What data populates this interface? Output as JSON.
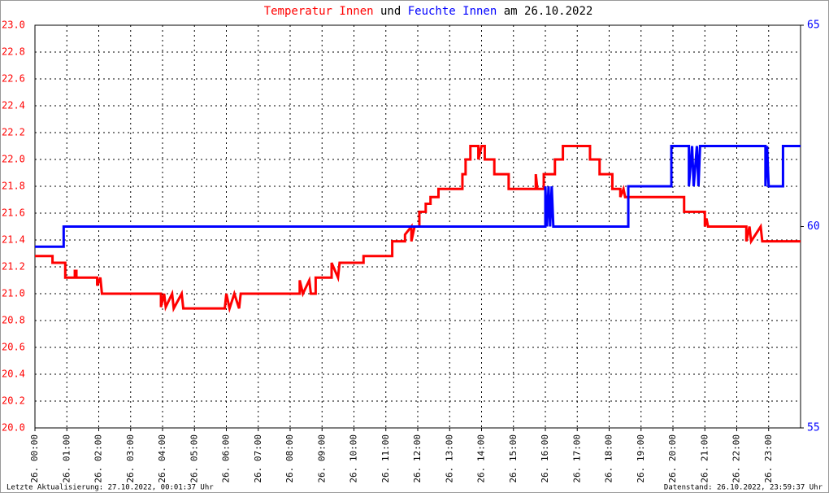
{
  "chart_data": {
    "type": "line",
    "title_joiner": "und",
    "title_suffix": "am 26.10.2022",
    "footer_left": "Letzte Aktualisierung: 27.10.2022, 00:01:37 Uhr",
    "footer_right": "Datenstand: 26.10.2022, 23:59:37 Uhr",
    "xlim": [
      0,
      24
    ],
    "xticks": [
      {
        "value": 0,
        "label": "26. 00:00"
      },
      {
        "value": 1,
        "label": "26. 01:00"
      },
      {
        "value": 2,
        "label": "26. 02:00"
      },
      {
        "value": 3,
        "label": "26. 03:00"
      },
      {
        "value": 4,
        "label": "26. 04:00"
      },
      {
        "value": 5,
        "label": "26. 05:00"
      },
      {
        "value": 6,
        "label": "26. 06:00"
      },
      {
        "value": 7,
        "label": "26. 07:00"
      },
      {
        "value": 8,
        "label": "26. 08:00"
      },
      {
        "value": 9,
        "label": "26. 09:00"
      },
      {
        "value": 10,
        "label": "26. 10:00"
      },
      {
        "value": 11,
        "label": "26. 11:00"
      },
      {
        "value": 12,
        "label": "26. 12:00"
      },
      {
        "value": 13,
        "label": "26. 13:00"
      },
      {
        "value": 14,
        "label": "26. 14:00"
      },
      {
        "value": 15,
        "label": "26. 15:00"
      },
      {
        "value": 16,
        "label": "26. 16:00"
      },
      {
        "value": 17,
        "label": "26. 17:00"
      },
      {
        "value": 18,
        "label": "26. 18:00"
      },
      {
        "value": 19,
        "label": "26. 19:00"
      },
      {
        "value": 20,
        "label": "26. 20:00"
      },
      {
        "value": 21,
        "label": "26. 21:00"
      },
      {
        "value": 22,
        "label": "26. 22:00"
      },
      {
        "value": 23,
        "label": "26. 23:00"
      }
    ],
    "ylim": [
      20,
      23
    ],
    "yticks": [
      {
        "value": 20,
        "label": "20.0"
      },
      20.2,
      20.4,
      20.6,
      20.8,
      {
        "value": 21,
        "label": "21.0"
      },
      21.2,
      21.4,
      21.6,
      21.8,
      {
        "value": 22,
        "label": "22.0"
      },
      22.2,
      22.4,
      22.6,
      22.8,
      {
        "value": 23,
        "label": "23.0"
      }
    ],
    "y2lim": [
      55,
      65
    ],
    "y2ticks": [
      55,
      60,
      65
    ],
    "grid": true,
    "series": [
      {
        "name": "Temperatur Innen",
        "color": "#ff0000",
        "axis": "y",
        "x": [
          0,
          0.55,
          0.55,
          0.95,
          0.95,
          1.25,
          1.25,
          1.3,
          1.3,
          1.95,
          1.95,
          2.05,
          2.1,
          3.95,
          3.95,
          4.05,
          4.1,
          4.3,
          4.35,
          4.6,
          4.65,
          5.95,
          6.0,
          6.1,
          6.25,
          6.4,
          6.45,
          8.3,
          8.3,
          8.4,
          8.6,
          8.65,
          8.8,
          8.8,
          9.3,
          9.3,
          9.5,
          9.55,
          10.3,
          10.3,
          11.2,
          11.2,
          11.6,
          11.6,
          11.8,
          11.8,
          11.9,
          12.05,
          12.05,
          12.25,
          12.25,
          12.4,
          12.4,
          12.65,
          12.65,
          13.4,
          13.4,
          13.5,
          13.5,
          13.65,
          13.65,
          13.9,
          13.9,
          14.0,
          14.1,
          14.1,
          14.4,
          14.4,
          14.85,
          14.85,
          15.7,
          15.7,
          15.75,
          15.95,
          15.95,
          16.3,
          16.3,
          16.55,
          16.55,
          17.4,
          17.4,
          17.7,
          17.7,
          18.1,
          18.1,
          18.35,
          18.35,
          18.45,
          18.5,
          20.35,
          20.35,
          21.0,
          21.0,
          21.05,
          21.1,
          22.3,
          22.3,
          22.4,
          22.45,
          22.75,
          22.8,
          24
        ],
        "values": [
          21.28,
          21.28,
          21.23,
          21.23,
          21.12,
          21.12,
          21.17,
          21.17,
          21.12,
          21.12,
          21.06,
          21.12,
          21.0,
          21.0,
          20.9,
          21.0,
          20.9,
          21.0,
          20.89,
          21.0,
          20.89,
          20.89,
          21.0,
          20.89,
          21.0,
          20.89,
          21.0,
          21.0,
          21.1,
          21.0,
          21.1,
          21.0,
          21.0,
          21.12,
          21.12,
          21.23,
          21.12,
          21.23,
          21.23,
          21.28,
          21.28,
          21.39,
          21.39,
          21.44,
          21.5,
          21.39,
          21.5,
          21.5,
          21.61,
          21.61,
          21.67,
          21.67,
          21.72,
          21.72,
          21.78,
          21.78,
          21.89,
          21.89,
          22.0,
          22.0,
          22.1,
          22.1,
          22.0,
          22.1,
          22.1,
          22.0,
          22.0,
          21.89,
          21.89,
          21.78,
          21.78,
          21.89,
          21.78,
          21.78,
          21.89,
          21.89,
          22.0,
          22.0,
          22.1,
          22.1,
          22.0,
          22.0,
          21.89,
          21.89,
          21.78,
          21.78,
          21.72,
          21.78,
          21.72,
          21.72,
          21.61,
          21.61,
          21.5,
          21.56,
          21.5,
          21.5,
          21.39,
          21.5,
          21.39,
          21.5,
          21.39,
          21.39
        ]
      },
      {
        "name": "Feuchte Innen",
        "color": "#0000ff",
        "axis": "y2",
        "x": [
          0,
          0.9,
          0.9,
          16.0,
          16.0,
          16.05,
          16.1,
          16.15,
          16.2,
          16.25,
          18.6,
          18.6,
          19.95,
          19.95,
          20.5,
          20.5,
          20.6,
          20.65,
          20.75,
          20.8,
          20.85,
          22.9,
          22.9,
          22.95,
          23.0,
          23.45,
          23.45,
          24
        ],
        "values": [
          59.5,
          59.5,
          60,
          60,
          61,
          60,
          61,
          60,
          61,
          60,
          60,
          61,
          61,
          62,
          62,
          61,
          62,
          61,
          62,
          61,
          62,
          62,
          61,
          62,
          61,
          61,
          62,
          62
        ]
      }
    ]
  }
}
